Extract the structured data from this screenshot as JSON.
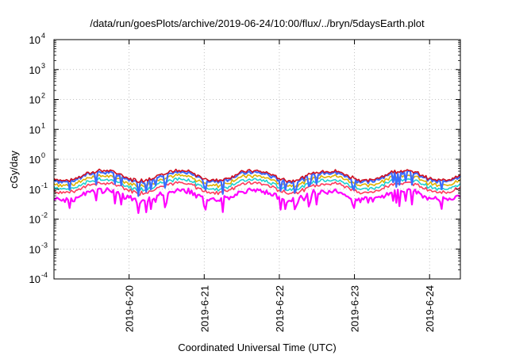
{
  "chart_data": {
    "type": "line",
    "title": "/data/run/goesPlots/archive/2019-06-24/10:00/flux/../bryn/5daysEarth.plot",
    "xlabel": "Coordinated Universal Time (UTC)",
    "ylabel": "cGy/day",
    "scale_y": "log",
    "grid": "dotted",
    "x_range_days": [
      0,
      5.41
    ],
    "ylim": [
      0.0001,
      10000
    ],
    "y_ticks": [
      {
        "value": 0.0001,
        "base": "10",
        "exp": "-4"
      },
      {
        "value": 0.001,
        "base": "10",
        "exp": "-3"
      },
      {
        "value": 0.01,
        "base": "10",
        "exp": "-2"
      },
      {
        "value": 0.1,
        "base": "10",
        "exp": "-1"
      },
      {
        "value": 1,
        "base": "10",
        "exp": "0"
      },
      {
        "value": 10,
        "base": "10",
        "exp": "1"
      },
      {
        "value": 100,
        "base": "10",
        "exp": "2"
      },
      {
        "value": 1000,
        "base": "10",
        "exp": "3"
      },
      {
        "value": 10000,
        "base": "10",
        "exp": "4"
      }
    ],
    "x_ticks": [
      {
        "label": "2019-6-20",
        "day": 1.0
      },
      {
        "label": "2019-6-21",
        "day": 2.0
      },
      {
        "label": "2019-6-22",
        "day": 3.0
      },
      {
        "label": "2019-6-23",
        "day": 4.0
      },
      {
        "label": "2019-6-24",
        "day": 5.0
      }
    ],
    "series": [
      {
        "color": "#ff00ff",
        "base": 0.09
      },
      {
        "color": "#ff3b5c",
        "base": 0.16
      },
      {
        "color": "#1fd0d0",
        "base": 0.21
      },
      {
        "color": "#e0b000",
        "base": 0.28
      },
      {
        "color": "#3b6bff",
        "base": 0.37
      },
      {
        "color": "#d01020",
        "base": 0.41
      }
    ]
  }
}
